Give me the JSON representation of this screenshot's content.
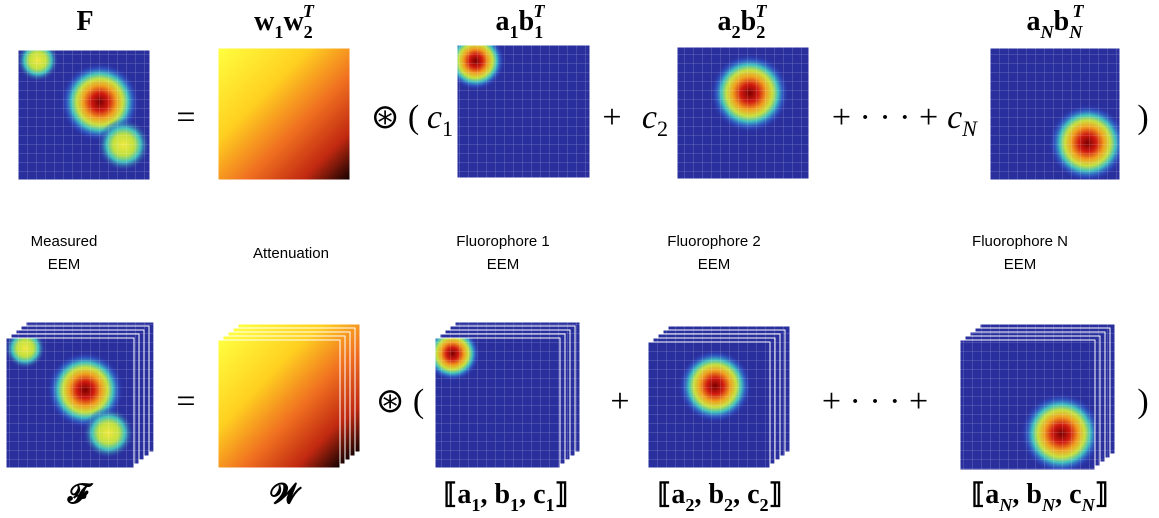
{
  "top_labels": [
    [
      {
        "base": "F"
      }
    ],
    [
      {
        "base": "w"
      },
      {
        "sub": "1"
      },
      {
        "base": "w"
      },
      {
        "sub": "2"
      },
      {
        "sup": "T"
      }
    ],
    [
      {
        "base": "a"
      },
      {
        "sub": "1"
      },
      {
        "base": "b"
      },
      {
        "sub": "1"
      },
      {
        "sup": "T"
      }
    ],
    [
      {
        "base": "a"
      },
      {
        "sub": "2"
      },
      {
        "base": "b"
      },
      {
        "sub": "2"
      },
      {
        "sup": "T"
      }
    ],
    [
      {
        "base": "a"
      },
      {
        "sub": "N"
      },
      {
        "base": "b"
      },
      {
        "sub": "N"
      },
      {
        "sup": "T"
      }
    ]
  ],
  "top_operators": [
    [
      {
        "base": "="
      }
    ],
    [
      {
        "base": "⊛ ("
      }
    ],
    [
      {
        "base": "c"
      },
      {
        "sub": "1"
      }
    ],
    [
      {
        "base": "+"
      }
    ],
    [
      {
        "base": "c"
      },
      {
        "sub": "2"
      }
    ],
    [
      {
        "base": "+ · · · +"
      }
    ],
    [
      {
        "base": "c"
      },
      {
        "sub": "N"
      }
    ],
    [
      {
        "base": ")"
      }
    ]
  ],
  "captions": [
    [
      "Measured",
      "EEM"
    ],
    [
      "Attenuation"
    ],
    [
      "Fluorophore 1",
      "EEM"
    ],
    [
      "Fluorophore 2",
      "EEM"
    ],
    [
      "Fluorophore N",
      "EEM"
    ]
  ],
  "bottom_operators": [
    [
      {
        "base": "="
      }
    ],
    [
      {
        "base": "⊛ ("
      }
    ],
    [
      {
        "base": "+"
      }
    ],
    [
      {
        "base": "+ · · · +"
      }
    ],
    [
      {
        "base": ")"
      }
    ]
  ],
  "bottom_labels": [
    [
      {
        "base": "𝓕"
      }
    ],
    [
      {
        "base": "𝓦"
      }
    ],
    [
      {
        "base": "⟦a"
      },
      {
        "sub": "1"
      },
      {
        "base": ", b"
      },
      {
        "sub": "1"
      },
      {
        "base": ", c"
      },
      {
        "sub": "1"
      },
      {
        "base": "⟧"
      }
    ],
    [
      {
        "base": "⟦a"
      },
      {
        "sub": "2"
      },
      {
        "base": ", b"
      },
      {
        "sub": "2"
      },
      {
        "base": ", c"
      },
      {
        "sub": "2"
      },
      {
        "base": "⟧"
      }
    ],
    [
      {
        "base": "⟦a"
      },
      {
        "sub": "N"
      },
      {
        "base": ", b"
      },
      {
        "sub": "N"
      },
      {
        "base": ", c"
      },
      {
        "sub": "N"
      },
      {
        "base": "⟧"
      }
    ]
  ]
}
